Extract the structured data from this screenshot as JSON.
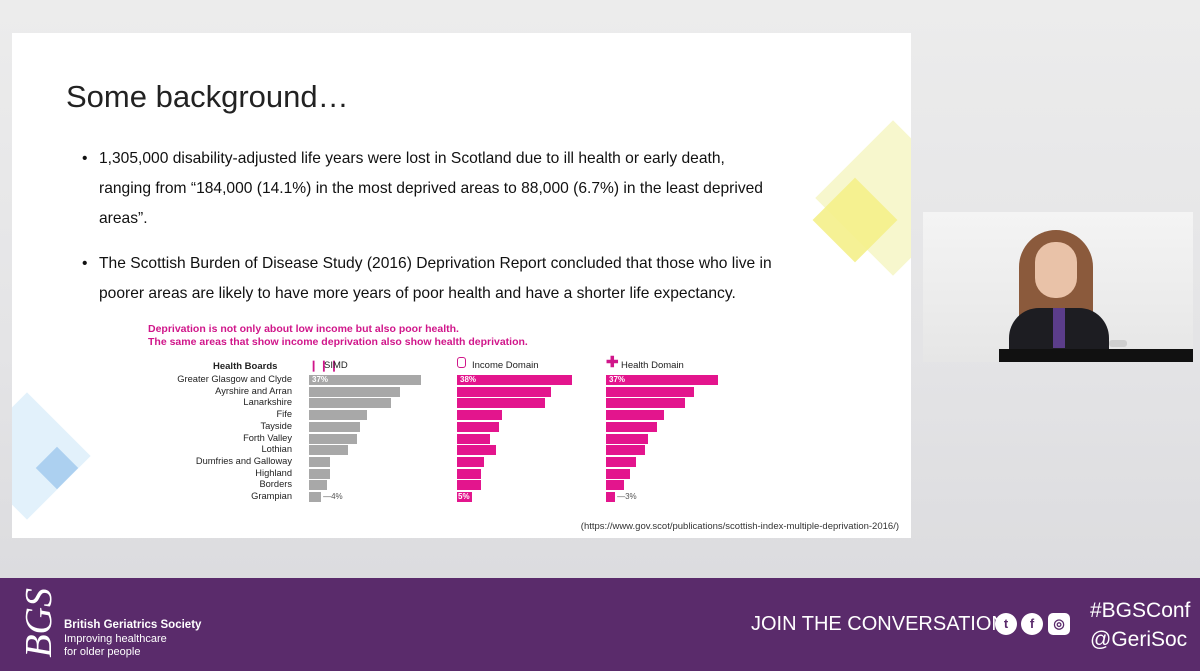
{
  "slide": {
    "title": "Some background…",
    "bullets": [
      {
        "marker": "•",
        "text": "1,305,000 disability-adjusted life years were lost in Scotland due to ill health or early death, ranging from “184,000 (14.1%) in the most deprived areas to 88,000 (6.7%) in the least deprived areas”."
      },
      {
        "marker": "•",
        "text": "The Scottish Burden of Disease Study (2016) Deprivation Report concluded that those who live in poorer areas are likely to have more years of poor health and have a shorter life expectancy."
      }
    ],
    "chart_heading_line1": "Deprivation is not only about low income but also poor health.",
    "chart_heading_line2": "The same areas that show income deprivation also show health deprivation.",
    "source": "(https://www.gov.scot/publications/scottish-index-multiple-deprivation-2016/)"
  },
  "chart_data": {
    "type": "bar",
    "category_header": "Health Boards",
    "categories": [
      "Greater Glasgow and Clyde",
      "Ayrshire and Arran",
      "Lanarkshire",
      "Fife",
      "Tayside",
      "Forth Valley",
      "Lothian",
      "Dumfries and Galloway",
      "Highland",
      "Borders",
      "Grampian"
    ],
    "series": [
      {
        "name": "SIMD",
        "color": "#a8a8a8",
        "values": [
          37,
          30,
          27,
          19,
          17,
          16,
          13,
          7,
          7,
          6,
          4
        ],
        "labels": {
          "0": "37%",
          "10": "4%"
        }
      },
      {
        "name": "Income Domain",
        "color": "#e3158d",
        "values": [
          38,
          31,
          29,
          15,
          14,
          11,
          13,
          9,
          8,
          8,
          5
        ],
        "labels": {
          "0": "38%",
          "10": "5%"
        }
      },
      {
        "name": "Health Domain",
        "color": "#e3158d",
        "values": [
          37,
          29,
          26,
          19,
          17,
          14,
          13,
          10,
          8,
          6,
          3
        ],
        "labels": {
          "0": "37%",
          "10": "3%"
        }
      }
    ]
  },
  "footer": {
    "logo_text": "BGS",
    "org_name": "British Geriatrics Society",
    "tagline_1": "Improving healthcare",
    "tagline_2": "for older people",
    "join": "JOIN THE CONVERSATION",
    "hashtag": "#BGSConf",
    "handle": "@GeriSoc",
    "icons": [
      "twitter-icon",
      "facebook-icon",
      "instagram-icon"
    ]
  }
}
